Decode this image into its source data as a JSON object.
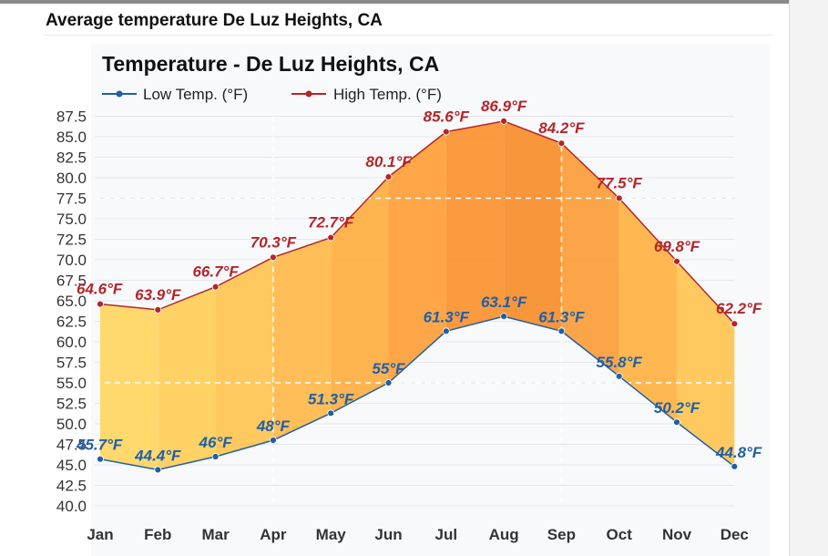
{
  "page": {
    "title": "Average temperature De Luz Heights, CA"
  },
  "chart_data": {
    "type": "line",
    "title": "Temperature - De Luz Heights, CA",
    "categories": [
      "Jan",
      "Feb",
      "Mar",
      "Apr",
      "May",
      "Jun",
      "Jul",
      "Aug",
      "Sep",
      "Oct",
      "Nov",
      "Dec"
    ],
    "series": [
      {
        "name": "Low Temp. (°F)",
        "color": "#1f5fa8",
        "values": [
          45.7,
          44.4,
          46,
          48,
          51.3,
          55,
          61.3,
          63.1,
          61.3,
          55.8,
          50.2,
          44.8
        ],
        "labels": [
          "45.7°F",
          "44.4°F",
          "46°F",
          "48°F",
          "51.3°F",
          "55°F",
          "61.3°F",
          "63.1°F",
          "61.3°F",
          "55.8°F",
          "50.2°F",
          "44.8°F"
        ]
      },
      {
        "name": "High Temp. (°F)",
        "color": "#b3262a",
        "values": [
          64.6,
          63.9,
          66.7,
          70.3,
          72.7,
          80.1,
          85.6,
          86.9,
          84.2,
          77.5,
          69.8,
          62.2
        ],
        "labels": [
          "64.6°F",
          "63.9°F",
          "66.7°F",
          "70.3°F",
          "72.7°F",
          "80.1°F",
          "85.6°F",
          "86.9°F",
          "84.2°F",
          "77.5°F",
          "69.8°F",
          "62.2°F"
        ]
      }
    ],
    "yticks": [
      "40.0",
      "42.5",
      "45.0",
      "47.5",
      "50.0",
      "52.5",
      "55.0",
      "57.5",
      "60.0",
      "62.5",
      "65.0",
      "67.5",
      "70.0",
      "72.5",
      "75.0",
      "77.5",
      "80.0",
      "82.5",
      "85.0",
      "87.5"
    ],
    "ylim": [
      40,
      87.5
    ],
    "grid": true,
    "legend": "top-left",
    "band_colors": [
      "#ffd766",
      "#ffd05e",
      "#ffc657",
      "#ffbb4f",
      "#ffb046",
      "#ffa23e",
      "#fb9535",
      "#f89030",
      "#fba03e",
      "#ffb448",
      "#ffc656",
      "#ffd865"
    ],
    "reference_lines": {
      "y_values": [
        55,
        77.5
      ],
      "x_categories": [
        "Apr",
        "Sep"
      ]
    }
  }
}
